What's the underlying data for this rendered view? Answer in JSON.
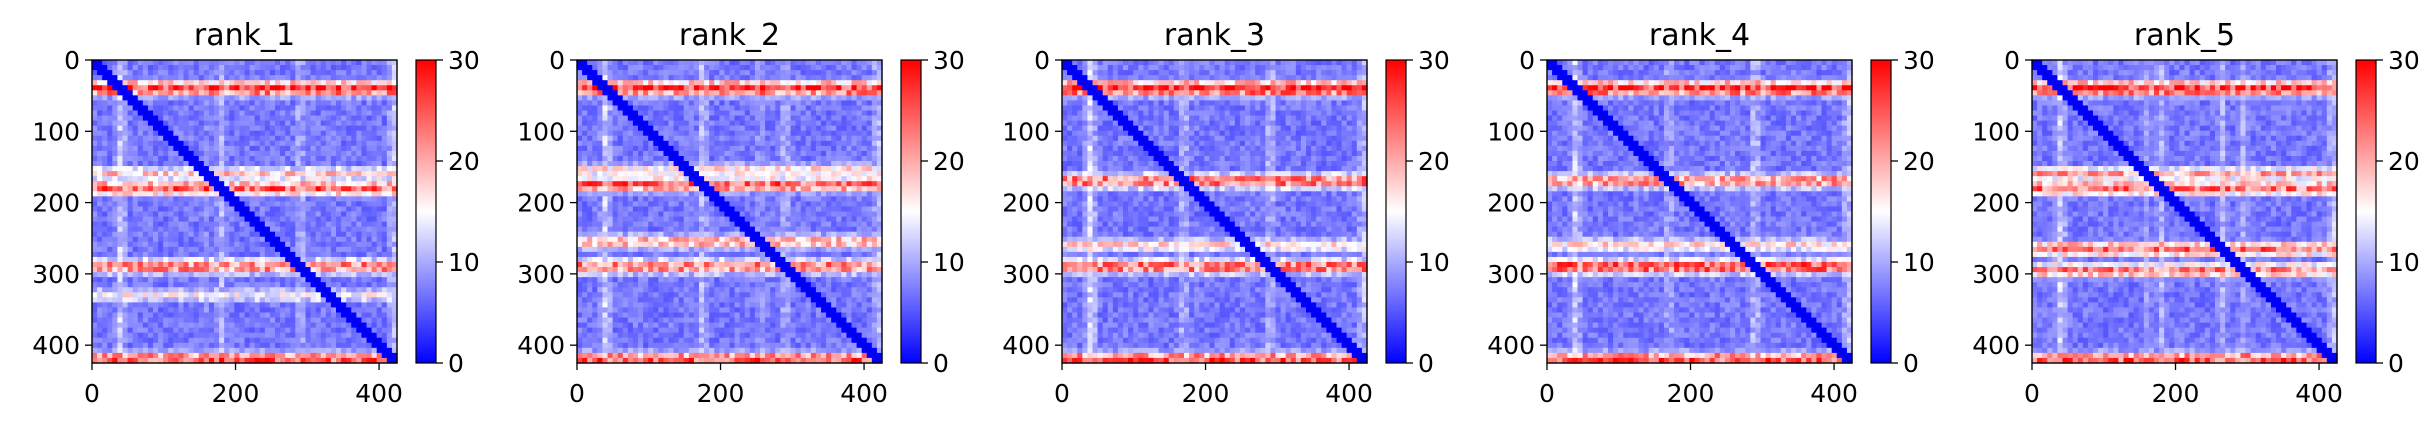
{
  "chart_data": [
    {
      "type": "heatmap",
      "title": "rank_1",
      "xlim": [
        0,
        425
      ],
      "ylim": [
        425,
        0
      ],
      "xticks": [
        "0",
        "200",
        "400"
      ],
      "yticks": [
        "0",
        "100",
        "200",
        "300",
        "400"
      ],
      "colorbar": {
        "min": 0,
        "max": 30,
        "ticks": [
          "0",
          "10",
          "20",
          "30"
        ],
        "colormap": [
          "#0000ff",
          "#ffffff",
          "#ff0000"
        ]
      },
      "bands": [
        {
          "center": 40,
          "value": 27
        },
        {
          "center": 160,
          "value": 18
        },
        {
          "center": 180,
          "value": 24
        },
        {
          "center": 290,
          "value": 23
        },
        {
          "center": 330,
          "value": 15
        },
        {
          "center": 420,
          "value": 25
        }
      ]
    },
    {
      "type": "heatmap",
      "title": "rank_2",
      "xlim": [
        0,
        425
      ],
      "ylim": [
        425,
        0
      ],
      "xticks": [
        "0",
        "200",
        "400"
      ],
      "yticks": [
        "0",
        "100",
        "200",
        "300",
        "400"
      ],
      "colorbar": {
        "min": 0,
        "max": 30,
        "ticks": [
          "0",
          "10",
          "20",
          "30"
        ],
        "colormap": [
          "#0000ff",
          "#ffffff",
          "#ff0000"
        ]
      },
      "bands": [
        {
          "center": 40,
          "value": 27
        },
        {
          "center": 155,
          "value": 17
        },
        {
          "center": 175,
          "value": 24
        },
        {
          "center": 255,
          "value": 20
        },
        {
          "center": 290,
          "value": 23
        },
        {
          "center": 420,
          "value": 25
        }
      ]
    },
    {
      "type": "heatmap",
      "title": "rank_3",
      "xlim": [
        0,
        425
      ],
      "ylim": [
        425,
        0
      ],
      "xticks": [
        "0",
        "200",
        "400"
      ],
      "yticks": [
        "0",
        "100",
        "200",
        "300",
        "400"
      ],
      "colorbar": {
        "min": 0,
        "max": 30,
        "ticks": [
          "0",
          "10",
          "20",
          "30"
        ],
        "colormap": [
          "#0000ff",
          "#ffffff",
          "#ff0000"
        ]
      },
      "bands": [
        {
          "center": 40,
          "value": 28
        },
        {
          "center": 170,
          "value": 24
        },
        {
          "center": 260,
          "value": 17
        },
        {
          "center": 290,
          "value": 24
        },
        {
          "center": 420,
          "value": 25
        }
      ]
    },
    {
      "type": "heatmap",
      "title": "rank_4",
      "xlim": [
        0,
        425
      ],
      "ylim": [
        425,
        0
      ],
      "xticks": [
        "0",
        "200",
        "400"
      ],
      "yticks": [
        "0",
        "100",
        "200",
        "300",
        "400"
      ],
      "colorbar": {
        "min": 0,
        "max": 30,
        "ticks": [
          "0",
          "10",
          "20",
          "30"
        ],
        "colormap": [
          "#0000ff",
          "#ffffff",
          "#ff0000"
        ]
      },
      "bands": [
        {
          "center": 40,
          "value": 27
        },
        {
          "center": 170,
          "value": 22
        },
        {
          "center": 260,
          "value": 17
        },
        {
          "center": 290,
          "value": 25
        },
        {
          "center": 420,
          "value": 25
        }
      ]
    },
    {
      "type": "heatmap",
      "title": "rank_5",
      "xlim": [
        0,
        425
      ],
      "ylim": [
        425,
        0
      ],
      "xticks": [
        "0",
        "200",
        "400"
      ],
      "yticks": [
        "0",
        "100",
        "200",
        "300",
        "400"
      ],
      "colorbar": {
        "min": 0,
        "max": 30,
        "ticks": [
          "0",
          "10",
          "20",
          "30"
        ],
        "colormap": [
          "#0000ff",
          "#ffffff",
          "#ff0000"
        ]
      },
      "bands": [
        {
          "center": 40,
          "value": 27
        },
        {
          "center": 160,
          "value": 20
        },
        {
          "center": 180,
          "value": 23
        },
        {
          "center": 265,
          "value": 23
        },
        {
          "center": 295,
          "value": 22
        },
        {
          "center": 420,
          "value": 25
        }
      ]
    }
  ]
}
